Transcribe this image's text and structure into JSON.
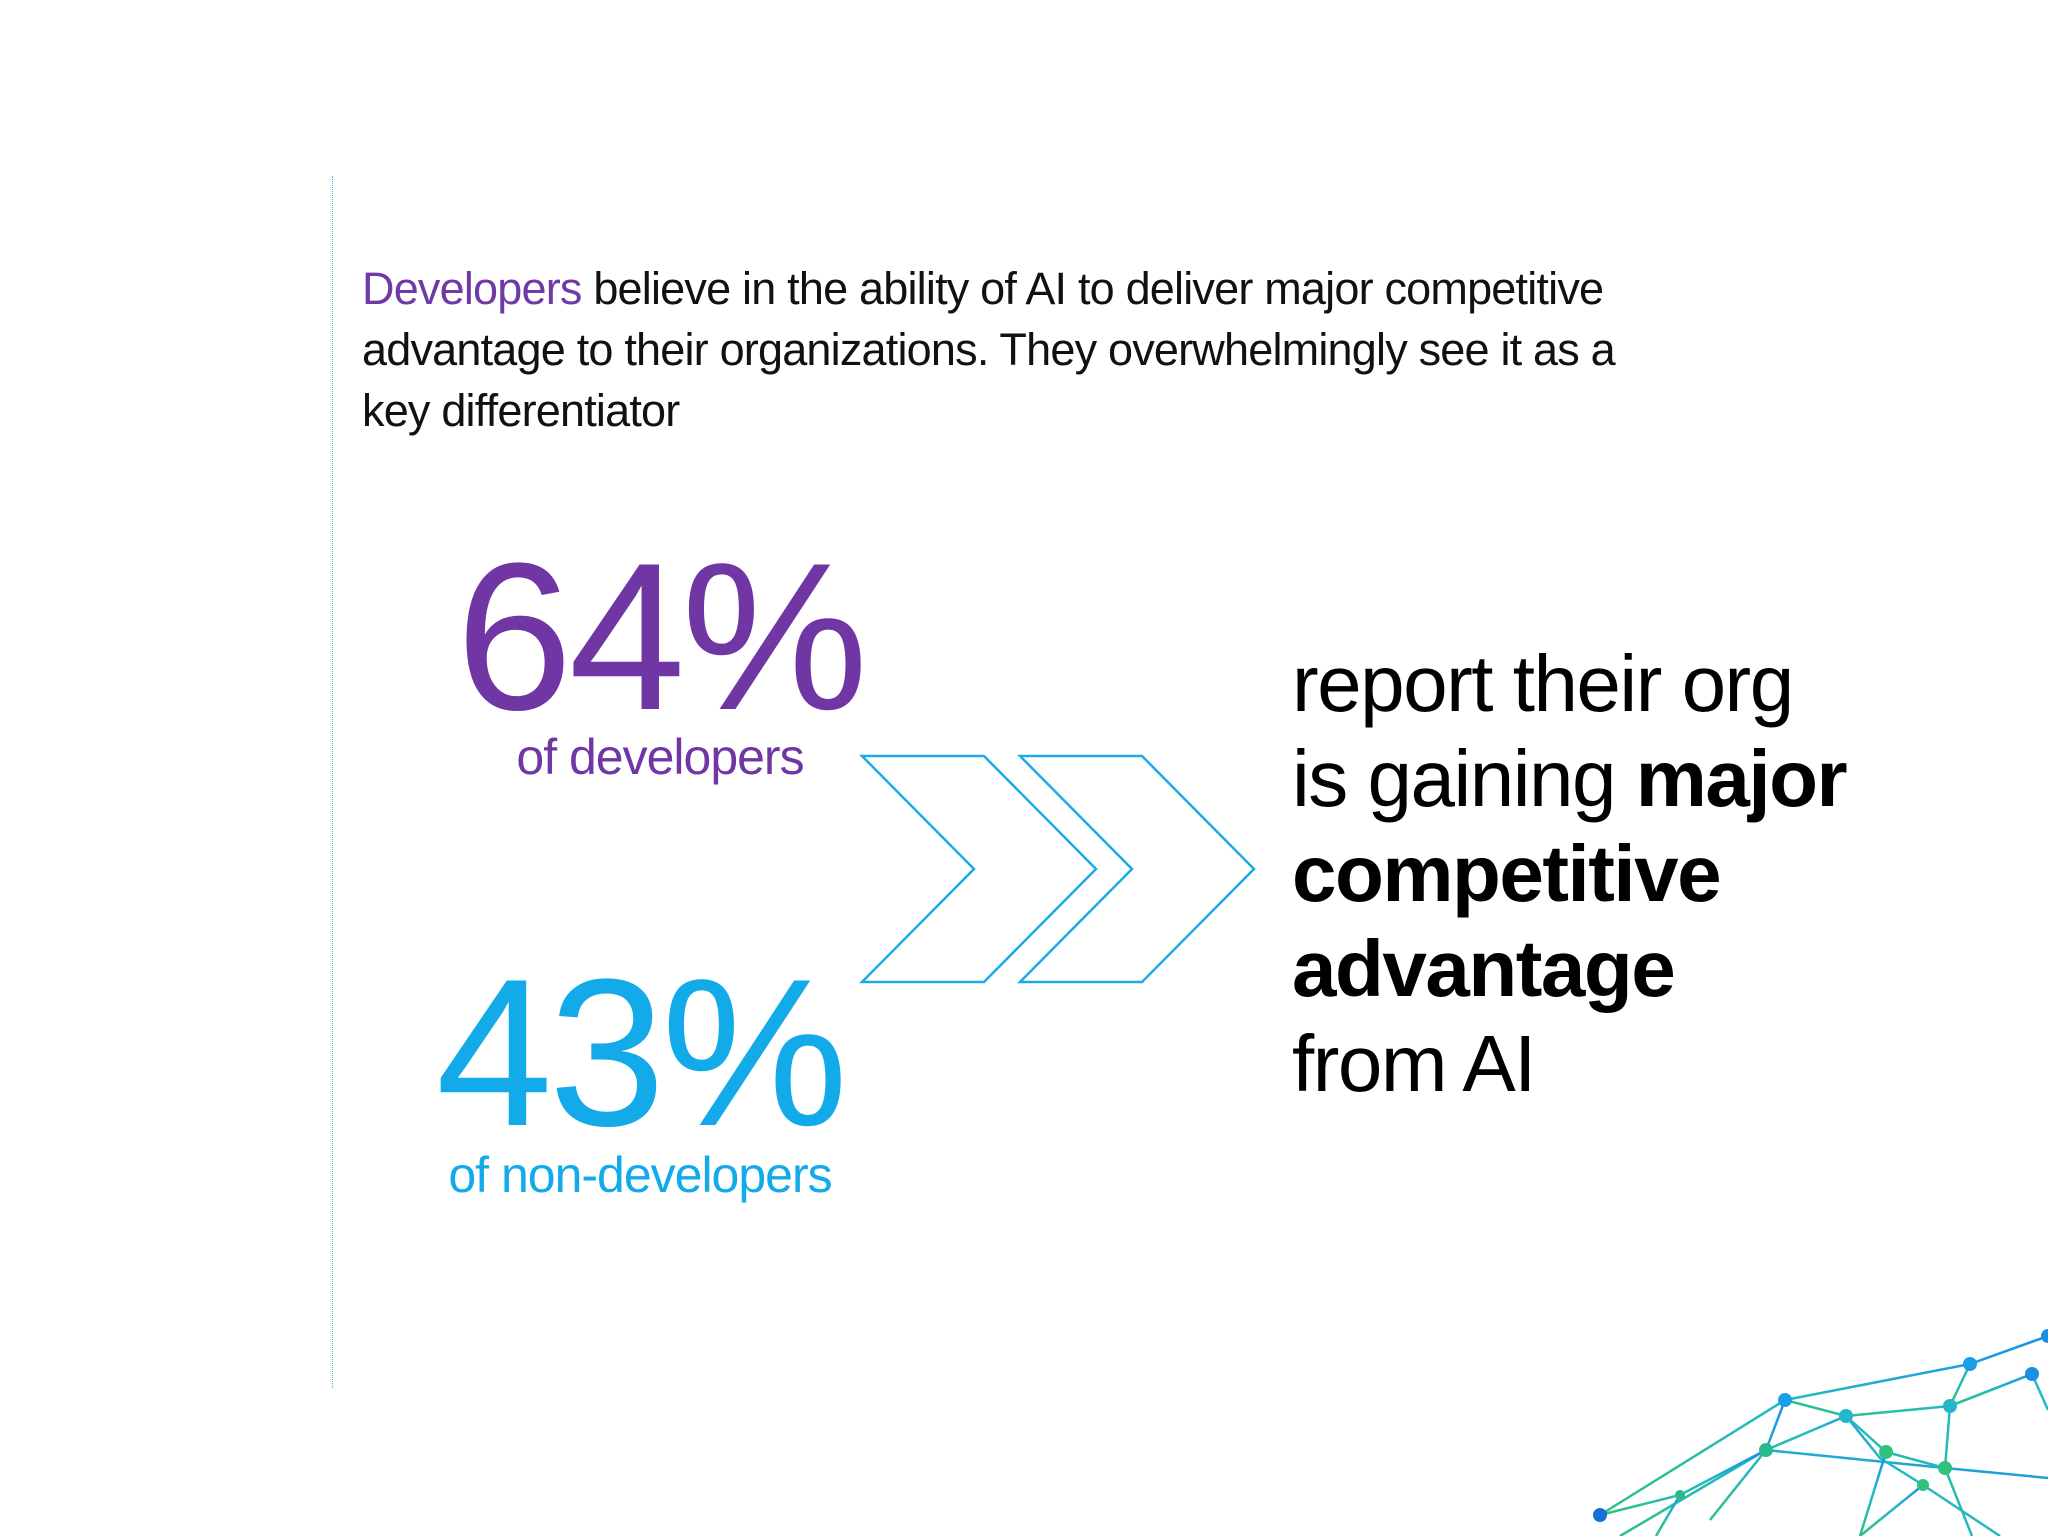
{
  "intro": {
    "highlight": "Developers",
    "rest": " believe in the ability of AI to deliver major competitive advantage to their organizations. They overwhelmingly see it as a key differentiator"
  },
  "stats": {
    "developers": {
      "value": "64%",
      "label": "of developers"
    },
    "non_developers": {
      "value": "43%",
      "label": "of non-developers"
    }
  },
  "outcome": {
    "line1": "report their org",
    "line2_start": "is gaining ",
    "line2_bold": "major",
    "line3_bold": "competitive",
    "line4_bold": "advantage",
    "line5": "from AI"
  },
  "colors": {
    "developers": "#6f36a4",
    "non_developers": "#12aae8",
    "chevron_stroke": "#1eaae6",
    "rule": "#55b2d6"
  }
}
